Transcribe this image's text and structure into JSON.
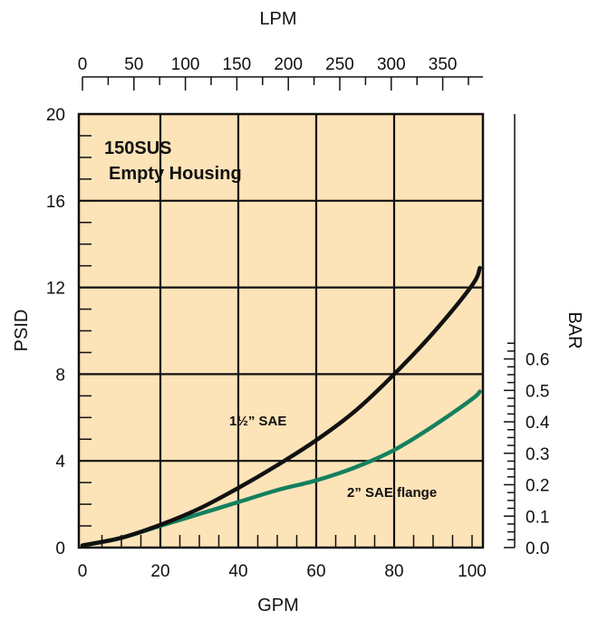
{
  "chart_data": {
    "type": "line",
    "title_lines": [
      "150SUS",
      "Empty Housing"
    ],
    "xlabel": "GPM",
    "ylabel": "PSID",
    "x2label": "LPM",
    "y2label": "BAR",
    "xlim": [
      0,
      102
    ],
    "ylim": [
      0,
      20
    ],
    "x_ticks": [
      0,
      20,
      40,
      60,
      80,
      100
    ],
    "y_ticks": [
      0,
      4,
      8,
      12,
      16,
      20
    ],
    "x2_ticks": [
      0,
      50,
      100,
      150,
      200,
      250,
      300,
      350
    ],
    "y2_ticks": [
      0.0,
      0.1,
      0.2,
      0.3,
      0.4,
      0.5,
      0.6
    ],
    "y2_tick_labels": [
      "0.0",
      "0.1",
      "0.2",
      "0.3",
      "0.4",
      "0.5",
      "0.6"
    ],
    "grid": true,
    "colors": {
      "background": "#fde3b8",
      "grid": "#111111",
      "series_1": "#111111",
      "series_2": "#14805e"
    },
    "series": [
      {
        "name": "1½” SAE",
        "x": [
          0,
          10,
          20,
          30,
          40,
          50,
          60,
          70,
          80,
          90,
          100,
          102
        ],
        "y": [
          0.1,
          0.45,
          1.05,
          1.8,
          2.75,
          3.8,
          4.95,
          6.3,
          8.0,
          9.9,
          12.1,
          12.9
        ]
      },
      {
        "name": "2” SAE flange",
        "x": [
          0,
          10,
          20,
          30,
          40,
          50,
          60,
          70,
          80,
          90,
          100,
          102
        ],
        "y": [
          0.1,
          0.45,
          1.0,
          1.55,
          2.1,
          2.65,
          3.1,
          3.7,
          4.5,
          5.6,
          6.85,
          7.2
        ]
      }
    ]
  }
}
